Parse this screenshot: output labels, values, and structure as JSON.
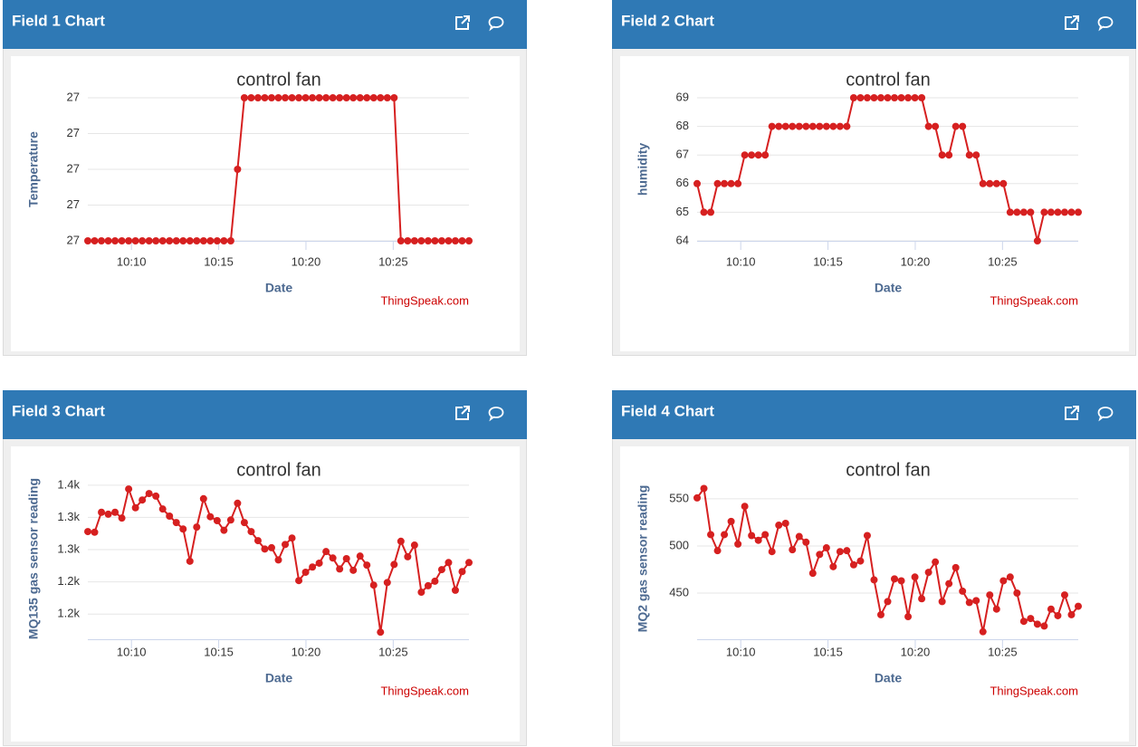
{
  "chart_data": [
    {
      "type": "line",
      "panel_title": "Field 1 Chart",
      "title": "control fan",
      "xlabel": "Date",
      "ylabel": "Temperature",
      "credit": "ThingSpeak.com",
      "color": "#d62020",
      "grid": true,
      "xlim": [
        7.5,
        29.34
      ],
      "xticks": [
        {
          "value": 10,
          "label": "10:10"
        },
        {
          "value": 15,
          "label": "10:15"
        },
        {
          "value": 20,
          "label": "10:20"
        },
        {
          "value": 25,
          "label": "10:25"
        }
      ],
      "ylim": [
        26.8,
        27.2
      ],
      "yticks": [
        {
          "value": 26.8,
          "label": "27"
        },
        {
          "value": 26.9,
          "label": "27"
        },
        {
          "value": 27.0,
          "label": "27"
        },
        {
          "value": 27.1,
          "label": "27"
        },
        {
          "value": 27.2,
          "label": "27"
        }
      ],
      "x": [
        7.5,
        7.89,
        8.28,
        8.67,
        9.06,
        9.45,
        9.84,
        10.23,
        10.62,
        11.01,
        11.4,
        11.79,
        12.18,
        12.57,
        12.96,
        13.35,
        13.74,
        14.13,
        14.52,
        14.91,
        15.3,
        15.69,
        16.08,
        16.47,
        16.86,
        17.25,
        17.64,
        18.03,
        18.42,
        18.81,
        19.2,
        19.59,
        19.98,
        20.37,
        20.76,
        21.15,
        21.54,
        21.93,
        22.32,
        22.71,
        23.1,
        23.49,
        23.88,
        24.27,
        24.66,
        25.05,
        25.44,
        25.83,
        26.22,
        26.61,
        27.0,
        27.39,
        27.78,
        28.17,
        28.56,
        28.95,
        29.34
      ],
      "values": [
        26.8,
        26.8,
        26.8,
        26.8,
        26.8,
        26.8,
        26.8,
        26.8,
        26.8,
        26.8,
        26.8,
        26.8,
        26.8,
        26.8,
        26.8,
        26.8,
        26.8,
        26.8,
        26.8,
        26.8,
        26.8,
        26.8,
        27.0,
        27.2,
        27.2,
        27.2,
        27.2,
        27.2,
        27.2,
        27.2,
        27.2,
        27.2,
        27.2,
        27.2,
        27.2,
        27.2,
        27.2,
        27.2,
        27.2,
        27.2,
        27.2,
        27.2,
        27.2,
        27.2,
        27.2,
        27.2,
        26.8,
        26.8,
        26.8,
        26.8,
        26.8,
        26.8,
        26.8,
        26.8,
        26.8,
        26.8,
        26.8
      ]
    },
    {
      "type": "line",
      "panel_title": "Field 2 Chart",
      "title": "control fan",
      "xlabel": "Date",
      "ylabel": "humidity",
      "credit": "ThingSpeak.com",
      "color": "#d62020",
      "grid": true,
      "xlim": [
        7.5,
        29.34
      ],
      "xticks": [
        {
          "value": 10,
          "label": "10:10"
        },
        {
          "value": 15,
          "label": "10:15"
        },
        {
          "value": 20,
          "label": "10:20"
        },
        {
          "value": 25,
          "label": "10:25"
        }
      ],
      "ylim": [
        64,
        69
      ],
      "yticks": [
        64,
        65,
        66,
        67,
        68,
        69
      ],
      "x": [
        7.5,
        7.89,
        8.28,
        8.67,
        9.06,
        9.45,
        9.84,
        10.23,
        10.62,
        11.01,
        11.4,
        11.79,
        12.18,
        12.57,
        12.96,
        13.35,
        13.74,
        14.13,
        14.52,
        14.91,
        15.3,
        15.69,
        16.08,
        16.47,
        16.86,
        17.25,
        17.64,
        18.03,
        18.42,
        18.81,
        19.2,
        19.59,
        19.98,
        20.37,
        20.76,
        21.15,
        21.54,
        21.93,
        22.32,
        22.71,
        23.1,
        23.49,
        23.88,
        24.27,
        24.66,
        25.05,
        25.44,
        25.83,
        26.22,
        26.61,
        27.0,
        27.39,
        27.78,
        28.17,
        28.56,
        28.95,
        29.34
      ],
      "values": [
        66,
        65,
        65,
        66,
        66,
        66,
        66,
        67,
        67,
        67,
        67,
        68,
        68,
        68,
        68,
        68,
        68,
        68,
        68,
        68,
        68,
        68,
        68,
        69,
        69,
        69,
        69,
        69,
        69,
        69,
        69,
        69,
        69,
        69,
        68,
        68,
        67,
        67,
        68,
        68,
        67,
        67,
        66,
        66,
        66,
        66,
        65,
        65,
        65,
        65,
        64,
        65,
        65,
        65,
        65,
        65,
        65
      ]
    },
    {
      "type": "line",
      "panel_title": "Field 3 Chart",
      "title": "control fan",
      "xlabel": "Date",
      "ylabel": "MQ135 gas sensor reading",
      "credit": "ThingSpeak.com",
      "color": "#d62020",
      "grid": true,
      "xlim": [
        7.5,
        29.34
      ],
      "xticks": [
        {
          "value": 10,
          "label": "10:10"
        },
        {
          "value": 15,
          "label": "10:15"
        },
        {
          "value": 20,
          "label": "10:20"
        },
        {
          "value": 25,
          "label": "10:25"
        }
      ],
      "ylim": [
        1111,
        1361
      ],
      "yticks": [
        {
          "value": 1150,
          "label": "1.2k"
        },
        {
          "value": 1200,
          "label": "1.2k"
        },
        {
          "value": 1250,
          "label": "1.3k"
        },
        {
          "value": 1300,
          "label": "1.3k"
        },
        {
          "value": 1350,
          "label": "1.4k"
        }
      ],
      "x": [
        7.5,
        7.89,
        8.28,
        8.67,
        9.06,
        9.45,
        9.84,
        10.23,
        10.62,
        11.01,
        11.4,
        11.79,
        12.18,
        12.57,
        12.96,
        13.35,
        13.74,
        14.13,
        14.52,
        14.91,
        15.3,
        15.69,
        16.08,
        16.47,
        16.86,
        17.25,
        17.64,
        18.03,
        18.42,
        18.81,
        19.2,
        19.59,
        19.98,
        20.37,
        20.76,
        21.15,
        21.54,
        21.93,
        22.32,
        22.71,
        23.1,
        23.49,
        23.88,
        24.27,
        24.66,
        25.05,
        25.44,
        25.83,
        26.22,
        26.61,
        27.0,
        27.39,
        27.78,
        28.17,
        28.56,
        28.95,
        29.34
      ],
      "values": [
        1278,
        1277,
        1308,
        1305,
        1308,
        1299,
        1344,
        1315,
        1327,
        1337,
        1333,
        1313,
        1302,
        1292,
        1282,
        1232,
        1285,
        1329,
        1301,
        1295,
        1280,
        1296,
        1322,
        1292,
        1278,
        1264,
        1251,
        1253,
        1234,
        1258,
        1268,
        1202,
        1215,
        1223,
        1229,
        1247,
        1237,
        1220,
        1236,
        1218,
        1240,
        1226,
        1195,
        1122,
        1199,
        1227,
        1263,
        1239,
        1257,
        1184,
        1194,
        1201,
        1219,
        1230,
        1187,
        1216,
        1230
      ]
    },
    {
      "type": "line",
      "panel_title": "Field 4 Chart",
      "title": "control fan",
      "xlabel": "Date",
      "ylabel": "MQ2 gas sensor reading",
      "credit": "ThingSpeak.com",
      "color": "#d62020",
      "grid": true,
      "xlim": [
        7.5,
        29.34
      ],
      "xticks": [
        {
          "value": 10,
          "label": "10:10"
        },
        {
          "value": 15,
          "label": "10:15"
        },
        {
          "value": 20,
          "label": "10:20"
        },
        {
          "value": 25,
          "label": "10:25"
        }
      ],
      "ylim": [
        401,
        572
      ],
      "yticks": [
        450,
        500,
        550
      ],
      "x": [
        7.5,
        7.89,
        8.28,
        8.67,
        9.06,
        9.45,
        9.84,
        10.23,
        10.62,
        11.01,
        11.4,
        11.79,
        12.18,
        12.57,
        12.96,
        13.35,
        13.74,
        14.13,
        14.52,
        14.91,
        15.3,
        15.69,
        16.08,
        16.47,
        16.86,
        17.25,
        17.64,
        18.03,
        18.42,
        18.81,
        19.2,
        19.59,
        19.98,
        20.37,
        20.76,
        21.15,
        21.54,
        21.93,
        22.32,
        22.71,
        23.1,
        23.49,
        23.88,
        24.27,
        24.66,
        25.05,
        25.44,
        25.83,
        26.22,
        26.61,
        27.0,
        27.39,
        27.78,
        28.17,
        28.56,
        28.95,
        29.34
      ],
      "values": [
        551,
        561,
        512,
        495,
        512,
        526,
        502,
        542,
        511,
        506,
        512,
        494,
        522,
        524,
        496,
        510,
        504,
        471,
        491,
        498,
        478,
        494,
        495,
        480,
        484,
        511,
        464,
        427,
        441,
        465,
        463,
        425,
        467,
        444,
        472,
        483,
        441,
        460,
        477,
        452,
        440,
        442,
        409,
        448,
        433,
        463,
        467,
        450,
        420,
        423,
        417,
        415,
        433,
        426,
        448,
        427,
        436
      ]
    }
  ]
}
